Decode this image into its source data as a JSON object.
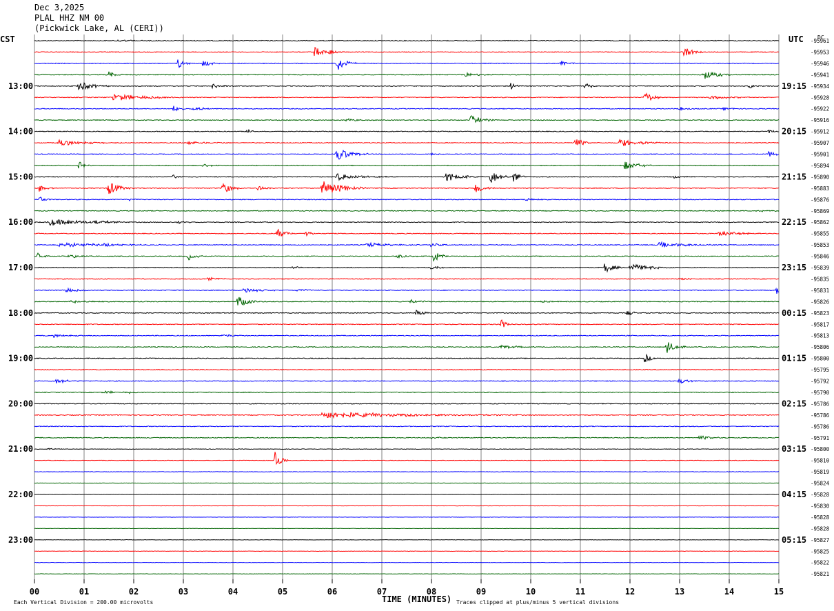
{
  "header": {
    "date": "Dec 3,2025",
    "station": "PLAL HHZ NM 00",
    "location": "(Pickwick Lake, AL (CERI))"
  },
  "left_tz": "CST",
  "right_tz": "UTC",
  "dc_label": "DC",
  "footer": {
    "scale": "Each Vertical Division =  200.00 microvolts",
    "xlabel": "TIME (MINUTES)",
    "clip": "Traces clipped at plus/minus 5 vertical divisions"
  },
  "colors": {
    "trace_cycle": [
      "#000000",
      "#ff0000",
      "#0000ff",
      "#006400"
    ],
    "grid": "#808080",
    "text": "#000000"
  },
  "chart_data": {
    "type": "line",
    "title": "Dec 3,2025 PLAL HHZ NM 00 (Pickwick Lake, AL (CERI))",
    "xlabel": "TIME (MINUTES)",
    "xlim": [
      0,
      15
    ],
    "x_ticks": [
      "00",
      "01",
      "02",
      "03",
      "04",
      "05",
      "06",
      "07",
      "08",
      "09",
      "10",
      "11",
      "12",
      "13",
      "14",
      "15"
    ],
    "row_minutes": 15,
    "rows": 48,
    "left_hour_labels": [
      {
        "row": 4,
        "label": "13:00"
      },
      {
        "row": 8,
        "label": "14:00"
      },
      {
        "row": 12,
        "label": "15:00"
      },
      {
        "row": 16,
        "label": "16:00"
      },
      {
        "row": 20,
        "label": "17:00"
      },
      {
        "row": 24,
        "label": "18:00"
      },
      {
        "row": 28,
        "label": "19:00"
      },
      {
        "row": 32,
        "label": "20:00"
      },
      {
        "row": 36,
        "label": "21:00"
      },
      {
        "row": 40,
        "label": "22:00"
      },
      {
        "row": 44,
        "label": "23:00"
      }
    ],
    "right_hour_labels": [
      {
        "row": 4,
        "label": "19:15"
      },
      {
        "row": 8,
        "label": "20:15"
      },
      {
        "row": 12,
        "label": "21:15"
      },
      {
        "row": 16,
        "label": "22:15"
      },
      {
        "row": 20,
        "label": "23:15"
      },
      {
        "row": 24,
        "label": "00:15"
      },
      {
        "row": 28,
        "label": "01:15"
      },
      {
        "row": 32,
        "label": "02:15"
      },
      {
        "row": 36,
        "label": "03:15"
      },
      {
        "row": 40,
        "label": "04:15"
      },
      {
        "row": 44,
        "label": "05:15"
      }
    ],
    "dc_offsets": [
      "-95961",
      "-95953",
      "-95946",
      "-95941",
      "-95934",
      "-95928",
      "-95922",
      "-95916",
      "-95912",
      "-95907",
      "-95901",
      "-95894",
      "-95890",
      "-95883",
      "-95876",
      "-95869",
      "-95862",
      "-95855",
      "-95853",
      "-95846",
      "-95839",
      "-95835",
      "-95831",
      "-95826",
      "-95823",
      "-95817",
      "-95813",
      "-95806",
      "-95800",
      "-95795",
      "-95792",
      "-95790",
      "-95786",
      "-95786",
      "-95786",
      "-95791",
      "-95800",
      "-95810",
      "-95819",
      "-95824",
      "-95828",
      "-95830",
      "-95828",
      "-95828",
      "-95827",
      "-95825",
      "-95822",
      "-95821"
    ],
    "events": [
      {
        "row": 0,
        "minute": 1.7,
        "amp": 1.5,
        "width": 0.3
      },
      {
        "row": 1,
        "minute": 5.65,
        "amp": 9,
        "width": 0.12
      },
      {
        "row": 1,
        "minute": 5.95,
        "amp": 5,
        "width": 0.12
      },
      {
        "row": 1,
        "minute": 13.1,
        "amp": 7,
        "width": 0.15
      },
      {
        "row": 2,
        "minute": 2.9,
        "amp": 8,
        "width": 0.1
      },
      {
        "row": 2,
        "minute": 3.4,
        "amp": 4,
        "width": 0.2
      },
      {
        "row": 2,
        "minute": 6.1,
        "amp": 12,
        "width": 0.15
      },
      {
        "row": 2,
        "minute": 10.6,
        "amp": 5,
        "width": 0.12
      },
      {
        "row": 3,
        "minute": 1.5,
        "amp": 5,
        "width": 0.12
      },
      {
        "row": 3,
        "minute": 8.7,
        "amp": 3,
        "width": 0.2
      },
      {
        "row": 3,
        "minute": 13.5,
        "amp": 7,
        "width": 0.25
      },
      {
        "row": 4,
        "minute": 0.9,
        "amp": 7,
        "width": 0.25
      },
      {
        "row": 4,
        "minute": 3.6,
        "amp": 4,
        "width": 0.15
      },
      {
        "row": 4,
        "minute": 9.6,
        "amp": 5,
        "width": 0.1
      },
      {
        "row": 4,
        "minute": 11.1,
        "amp": 6,
        "width": 0.1
      },
      {
        "row": 4,
        "minute": 14.4,
        "amp": 3,
        "width": 0.12
      },
      {
        "row": 5,
        "minute": 1.6,
        "amp": 5,
        "width": 0.6
      },
      {
        "row": 5,
        "minute": 12.3,
        "amp": 9,
        "width": 0.15
      },
      {
        "row": 5,
        "minute": 13.6,
        "amp": 2.5,
        "width": 0.4
      },
      {
        "row": 6,
        "minute": 2.8,
        "amp": 5,
        "width": 0.12
      },
      {
        "row": 6,
        "minute": 3.2,
        "amp": 3,
        "width": 0.2
      },
      {
        "row": 6,
        "minute": 13.0,
        "amp": 2.5,
        "width": 0.15
      },
      {
        "row": 6,
        "minute": 13.9,
        "amp": 2,
        "width": 0.15
      },
      {
        "row": 7,
        "minute": 6.3,
        "amp": 2,
        "width": 0.3
      },
      {
        "row": 7,
        "minute": 8.8,
        "amp": 7,
        "width": 0.2
      },
      {
        "row": 8,
        "minute": 4.3,
        "amp": 4,
        "width": 0.12
      },
      {
        "row": 8,
        "minute": 14.8,
        "amp": 2.5,
        "width": 0.12
      },
      {
        "row": 9,
        "minute": 0.5,
        "amp": 4,
        "width": 0.5
      },
      {
        "row": 9,
        "minute": 3.1,
        "amp": 2.5,
        "width": 0.4
      },
      {
        "row": 9,
        "minute": 10.9,
        "amp": 7,
        "width": 0.15
      },
      {
        "row": 9,
        "minute": 11.8,
        "amp": 7,
        "width": 0.2
      },
      {
        "row": 9,
        "minute": 12.2,
        "amp": 2,
        "width": 0.4
      },
      {
        "row": 10,
        "minute": 6.1,
        "amp": 10,
        "width": 0.25
      },
      {
        "row": 10,
        "minute": 8.0,
        "amp": 2,
        "width": 0.15
      },
      {
        "row": 10,
        "minute": 14.8,
        "amp": 5,
        "width": 0.12
      },
      {
        "row": 11,
        "minute": 0.9,
        "amp": 6,
        "width": 0.1
      },
      {
        "row": 11,
        "minute": 3.4,
        "amp": 3,
        "width": 0.15
      },
      {
        "row": 11,
        "minute": 11.9,
        "amp": 6,
        "width": 0.25
      },
      {
        "row": 12,
        "minute": 2.8,
        "amp": 3,
        "width": 0.12
      },
      {
        "row": 12,
        "minute": 6.1,
        "amp": 5,
        "width": 0.4
      },
      {
        "row": 12,
        "minute": 8.3,
        "amp": 6,
        "width": 0.3
      },
      {
        "row": 12,
        "minute": 9.2,
        "amp": 10,
        "width": 0.15
      },
      {
        "row": 12,
        "minute": 9.65,
        "amp": 9,
        "width": 0.12
      },
      {
        "row": 12,
        "minute": 12.9,
        "amp": 2,
        "width": 0.15
      },
      {
        "row": 13,
        "minute": 0.1,
        "amp": 6,
        "width": 0.12
      },
      {
        "row": 13,
        "minute": 1.5,
        "amp": 10,
        "width": 0.2
      },
      {
        "row": 13,
        "minute": 3.8,
        "amp": 9,
        "width": 0.15
      },
      {
        "row": 13,
        "minute": 4.5,
        "amp": 4,
        "width": 0.15
      },
      {
        "row": 13,
        "minute": 5.8,
        "amp": 12,
        "width": 0.35
      },
      {
        "row": 13,
        "minute": 8.9,
        "amp": 7,
        "width": 0.15
      },
      {
        "row": 14,
        "minute": 0.1,
        "amp": 5,
        "width": 0.1
      },
      {
        "row": 14,
        "minute": 1.9,
        "amp": 2,
        "width": 0.12
      },
      {
        "row": 14,
        "minute": 9.9,
        "amp": 2,
        "width": 0.2
      },
      {
        "row": 15,
        "minute": 14.5,
        "amp": 1.5,
        "width": 0.3
      },
      {
        "row": 16,
        "minute": 0.3,
        "amp": 5,
        "width": 0.6
      },
      {
        "row": 16,
        "minute": 1.2,
        "amp": 2,
        "width": 0.3
      },
      {
        "row": 16,
        "minute": 2.9,
        "amp": 2,
        "width": 0.2
      },
      {
        "row": 17,
        "minute": 4.9,
        "amp": 7,
        "width": 0.15
      },
      {
        "row": 17,
        "minute": 5.45,
        "amp": 8,
        "width": 0.08
      },
      {
        "row": 17,
        "minute": 13.8,
        "amp": 4,
        "width": 0.35
      },
      {
        "row": 18,
        "minute": 0.5,
        "amp": 3,
        "width": 0.9
      },
      {
        "row": 18,
        "minute": 1.4,
        "amp": 2,
        "width": 0.3
      },
      {
        "row": 18,
        "minute": 6.7,
        "amp": 3,
        "width": 0.4
      },
      {
        "row": 18,
        "minute": 8.0,
        "amp": 3,
        "width": 0.15
      },
      {
        "row": 18,
        "minute": 12.6,
        "amp": 4,
        "width": 0.5
      },
      {
        "row": 19,
        "minute": 0.05,
        "amp": 8,
        "width": 0.1
      },
      {
        "row": 19,
        "minute": 0.7,
        "amp": 3,
        "width": 0.2
      },
      {
        "row": 19,
        "minute": 3.1,
        "amp": 7,
        "width": 0.12
      },
      {
        "row": 19,
        "minute": 7.3,
        "amp": 3,
        "width": 0.25
      },
      {
        "row": 19,
        "minute": 8.05,
        "amp": 9,
        "width": 0.12
      },
      {
        "row": 20,
        "minute": 5.2,
        "amp": 2,
        "width": 0.15
      },
      {
        "row": 20,
        "minute": 8.0,
        "amp": 3,
        "width": 0.15
      },
      {
        "row": 20,
        "minute": 11.5,
        "amp": 8,
        "width": 0.15
      },
      {
        "row": 20,
        "minute": 12.0,
        "amp": 6,
        "width": 0.35
      },
      {
        "row": 21,
        "minute": 3.5,
        "amp": 2.5,
        "width": 0.15
      },
      {
        "row": 21,
        "minute": 13.0,
        "amp": 2,
        "width": 0.15
      },
      {
        "row": 22,
        "minute": 0.6,
        "amp": 4,
        "width": 0.2
      },
      {
        "row": 22,
        "minute": 4.2,
        "amp": 4,
        "width": 0.3
      },
      {
        "row": 22,
        "minute": 5.3,
        "amp": 2,
        "width": 0.2
      },
      {
        "row": 22,
        "minute": 14.95,
        "amp": 6,
        "width": 0.08
      },
      {
        "row": 23,
        "minute": 0.75,
        "amp": 2.5,
        "width": 0.3
      },
      {
        "row": 23,
        "minute": 4.1,
        "amp": 8,
        "width": 0.2
      },
      {
        "row": 23,
        "minute": 7.6,
        "amp": 3,
        "width": 0.2
      },
      {
        "row": 23,
        "minute": 10.2,
        "amp": 2,
        "width": 0.15
      },
      {
        "row": 24,
        "minute": 7.7,
        "amp": 5,
        "width": 0.12
      },
      {
        "row": 24,
        "minute": 11.95,
        "amp": 4,
        "width": 0.12
      },
      {
        "row": 25,
        "minute": 9.4,
        "amp": 8,
        "width": 0.1
      },
      {
        "row": 26,
        "minute": 0.4,
        "amp": 2.5,
        "width": 0.25
      },
      {
        "row": 26,
        "minute": 3.8,
        "amp": 2.5,
        "width": 0.2
      },
      {
        "row": 27,
        "minute": 9.4,
        "amp": 3,
        "width": 0.3
      },
      {
        "row": 27,
        "minute": 12.75,
        "amp": 9,
        "width": 0.15
      },
      {
        "row": 28,
        "minute": 12.3,
        "amp": 7,
        "width": 0.1
      },
      {
        "row": 30,
        "minute": 0.45,
        "amp": 3.5,
        "width": 0.2
      },
      {
        "row": 30,
        "minute": 13.0,
        "amp": 4,
        "width": 0.15
      },
      {
        "row": 31,
        "minute": 1.4,
        "amp": 2,
        "width": 0.3
      },
      {
        "row": 31,
        "minute": 1.85,
        "amp": 1.5,
        "width": 0.2
      },
      {
        "row": 33,
        "minute": 5.8,
        "amp": 5,
        "width": 1.6
      },
      {
        "row": 35,
        "minute": 8.0,
        "amp": 1.5,
        "width": 0.15
      },
      {
        "row": 35,
        "minute": 13.4,
        "amp": 3,
        "width": 0.25
      },
      {
        "row": 36,
        "minute": 0.25,
        "amp": 2,
        "width": 0.15
      },
      {
        "row": 37,
        "minute": 4.85,
        "amp": 14,
        "width": 0.1
      }
    ]
  }
}
